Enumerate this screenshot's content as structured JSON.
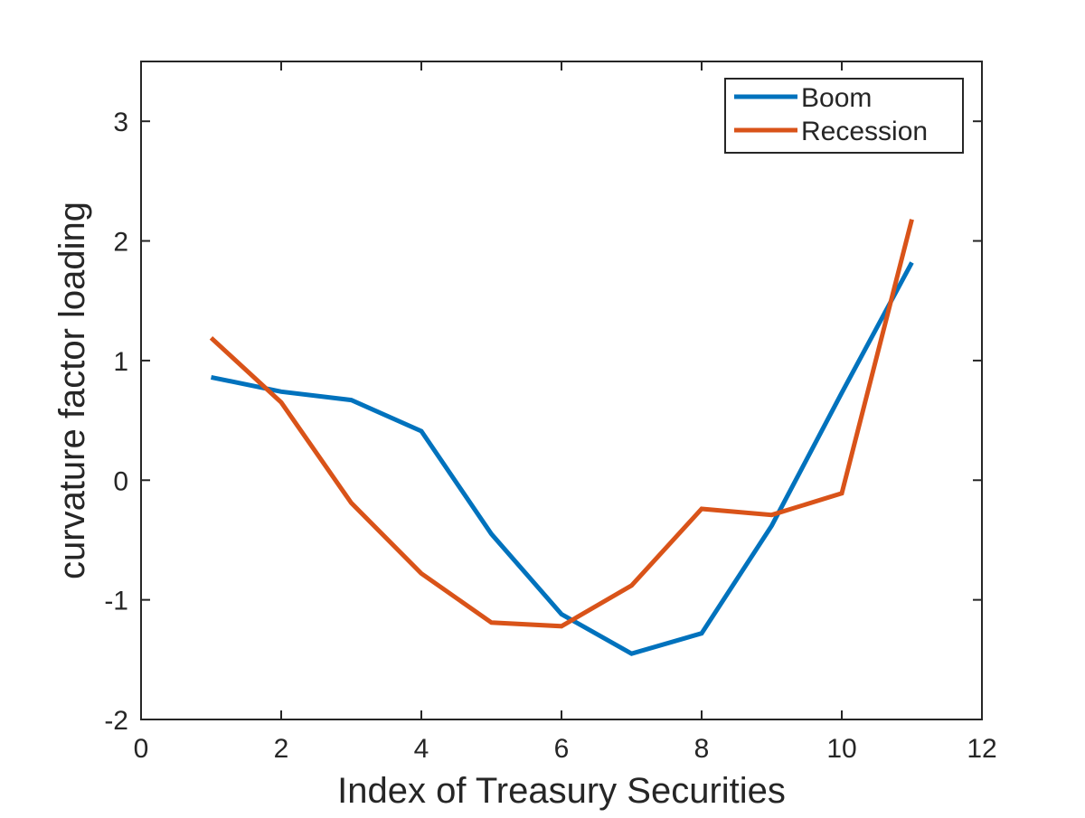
{
  "chart_data": {
    "type": "line",
    "title": "",
    "xlabel": "Index of Treasury Securities",
    "ylabel": "curvature factor loading",
    "xlim": [
      0,
      12
    ],
    "ylim": [
      -2,
      3.5
    ],
    "xticks": [
      0,
      2,
      4,
      6,
      8,
      10,
      12
    ],
    "xtick_labels": [
      "0",
      "2",
      "4",
      "6",
      "8",
      "10",
      "12"
    ],
    "yticks": [
      -2,
      -1,
      0,
      1,
      2,
      3
    ],
    "ytick_labels": [
      "-2",
      "-1",
      "0",
      "1",
      "2",
      "3"
    ],
    "grid": false,
    "legend_position": "top-right",
    "x": [
      1,
      2,
      3,
      4,
      5,
      6,
      7,
      8,
      9,
      10,
      11
    ],
    "series": [
      {
        "name": "Boom",
        "color": "#0072BD",
        "values": [
          0.86,
          0.74,
          0.67,
          0.41,
          -0.45,
          -1.12,
          -1.45,
          -1.28,
          -0.38,
          0.73,
          1.82
        ]
      },
      {
        "name": "Recession",
        "color": "#D95319",
        "values": [
          1.19,
          0.65,
          -0.19,
          -0.78,
          -1.19,
          -1.22,
          -0.88,
          -0.24,
          -0.29,
          -0.11,
          2.18
        ]
      }
    ]
  }
}
